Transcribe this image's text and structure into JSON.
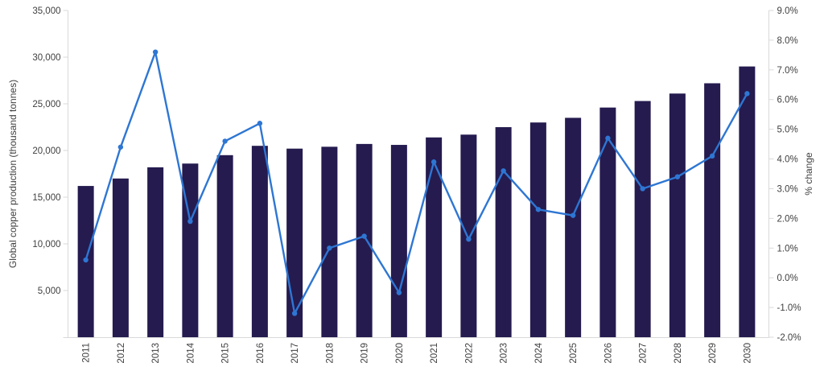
{
  "chart_data": {
    "type": "combo bar+line",
    "title": "",
    "legend": "none",
    "grid": "off",
    "categories": [
      "2011",
      "2012",
      "2013",
      "2014",
      "2015",
      "2016",
      "2017",
      "2018",
      "2019",
      "2020",
      "2021",
      "2022",
      "2023",
      "2024",
      "2025",
      "2026",
      "2027",
      "2028",
      "2029",
      "2030"
    ],
    "series": [
      {
        "name": "Global copper production",
        "chart": "bar",
        "axis": "left",
        "values": [
          16200,
          17000,
          18200,
          18600,
          19500,
          20500,
          20200,
          20400,
          20700,
          20600,
          21400,
          21700,
          22500,
          23000,
          23500,
          24600,
          25300,
          26100,
          27200,
          29000
        ]
      },
      {
        "name": "% change",
        "chart": "line",
        "axis": "right",
        "values": [
          0.6,
          4.4,
          7.6,
          1.9,
          4.6,
          5.2,
          -1.2,
          1.0,
          1.4,
          -0.5,
          3.9,
          1.3,
          3.6,
          2.3,
          2.1,
          4.7,
          3.0,
          3.4,
          4.1,
          6.2
        ]
      }
    ],
    "left_axis": {
      "label": "Global copper production (thousand tonnes)",
      "min": 0,
      "max": 35000,
      "ticks": [
        5000,
        10000,
        15000,
        20000,
        25000,
        30000,
        35000
      ],
      "tick_labels": [
        "5,000",
        "10,000",
        "15,000",
        "20,000",
        "25,000",
        "30,000",
        "35,000"
      ]
    },
    "right_axis": {
      "label": "% change",
      "min": -2,
      "max": 9,
      "ticks": [
        -2,
        -1,
        0,
        1,
        2,
        3,
        4,
        5,
        6,
        7,
        8,
        9
      ],
      "tick_labels": [
        "-2.0%",
        "-1.0%",
        "0.0%",
        "1.0%",
        "2.0%",
        "3.0%",
        "4.0%",
        "5.0%",
        "6.0%",
        "7.0%",
        "8.0%",
        "9.0%"
      ]
    },
    "colors": {
      "bar": "#251B4F",
      "line": "#2E76D3",
      "marker": "#2E76D3",
      "axis": "#D9D9D9",
      "text": "#404040"
    }
  }
}
